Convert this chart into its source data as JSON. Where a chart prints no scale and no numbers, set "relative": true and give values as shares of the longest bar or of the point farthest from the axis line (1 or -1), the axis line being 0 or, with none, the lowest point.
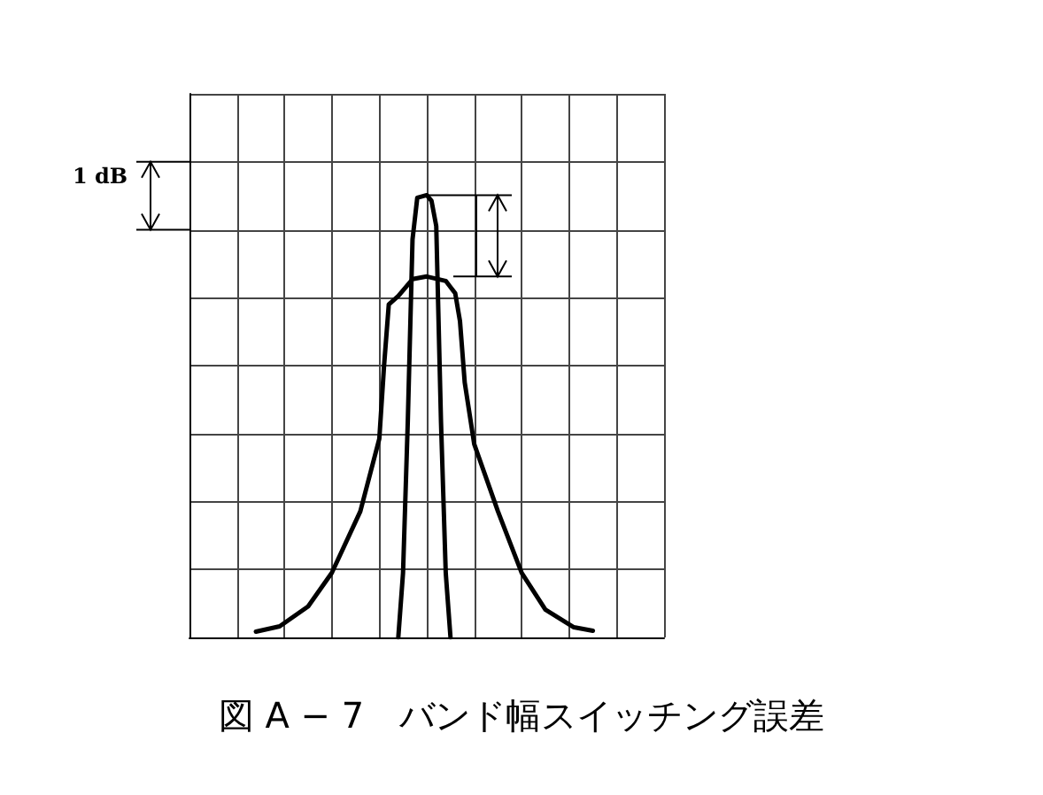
{
  "chart_data": {
    "type": "line",
    "title": "図 A − 7　バンド幅スイッチング誤差",
    "relative": true,
    "categories": [
      null,
      null,
      null,
      null,
      null,
      null,
      null,
      null,
      null,
      null,
      null,
      null,
      null,
      null,
      null,
      null,
      null,
      null,
      null,
      null,
      null,
      null,
      null,
      null,
      null,
      null,
      null,
      null,
      null,
      null,
      null,
      null,
      null,
      null,
      null,
      null,
      null,
      null,
      null,
      null,
      null,
      null,
      null,
      null,
      null,
      null,
      null,
      null,
      null,
      null,
      null,
      null,
      null,
      null,
      null,
      null,
      null,
      null,
      null,
      null,
      null,
      null,
      null,
      null,
      null,
      null,
      null,
      null,
      null,
      null,
      null,
      null,
      null,
      null,
      null,
      null,
      null,
      null,
      null,
      null,
      null,
      null,
      null,
      null,
      null,
      null,
      null,
      null,
      null,
      null,
      null,
      null,
      null,
      null,
      null,
      null,
      null,
      null,
      null,
      null,
      null
    ],
    "grid": true,
    "marker": "none",
    "line_style": "solid",
    "annotations": [
      "1 dB"
    ],
    "series": [
      {
        "color": "#000000",
        "values": [
          null,
          null,
          null,
          null,
          null,
          null,
          null,
          null,
          null,
          null,
          null,
          null,
          null,
          null,
          0.013,
          null,
          null,
          null,
          null,
          0.025,
          null,
          null,
          null,
          null,
          null,
          0.07,
          null,
          null,
          null,
          null,
          0.146,
          null,
          null,
          null,
          null,
          null,
          0.285,
          null,
          null,
          null,
          0.449,
          0.614,
          0.753,
          null,
          0.772,
          null,
          null,
          0.81,
          null,
          null,
          0.816,
          null,
          null,
          null,
          0.806,
          null,
          0.778,
          0.715,
          0.576,
          null,
          0.437,
          null,
          null,
          null,
          null,
          0.285,
          null,
          null,
          null,
          null,
          0.146,
          null,
          null,
          null,
          null,
          0.063,
          null,
          null,
          null,
          null,
          null,
          0.023,
          null,
          null,
          null,
          0.015,
          null,
          null,
          null,
          null,
          null,
          null,
          null,
          null,
          null,
          null,
          null,
          null,
          null,
          null,
          null
        ]
      },
      {
        "color": "#000000",
        "values": [
          null,
          null,
          null,
          null,
          null,
          null,
          null,
          null,
          null,
          null,
          null,
          null,
          null,
          null,
          null,
          null,
          null,
          null,
          null,
          null,
          null,
          null,
          null,
          null,
          null,
          null,
          null,
          null,
          null,
          null,
          null,
          null,
          null,
          null,
          null,
          null,
          null,
          null,
          null,
          null,
          null,
          null,
          null,
          null,
          0,
          0.146,
          0.487,
          0.9,
          0.994,
          null,
          1,
          0.987,
          0.93,
          0.487,
          0.146,
          0,
          null,
          null,
          null,
          null,
          null,
          null,
          null,
          null,
          null,
          null,
          null,
          null,
          null,
          null,
          null,
          null,
          null,
          null,
          null,
          null,
          null,
          null,
          null,
          null,
          null,
          null,
          null,
          null,
          null,
          null,
          null,
          null,
          null,
          null,
          null,
          null,
          null,
          null,
          null,
          null,
          null,
          null,
          null,
          null,
          null
        ]
      }
    ]
  }
}
